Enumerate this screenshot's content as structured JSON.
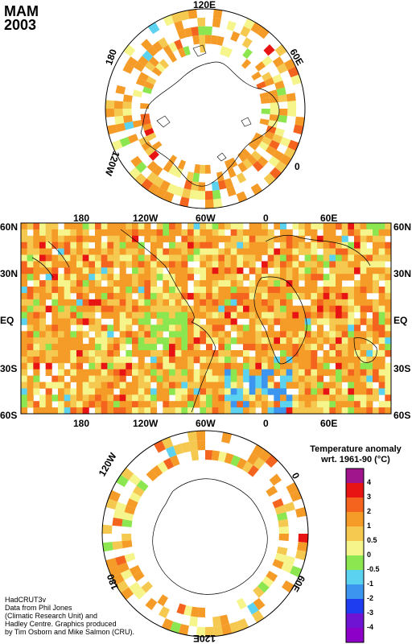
{
  "header": {
    "season": "MAM",
    "year": "2003"
  },
  "north_polar": {
    "labels": {
      "top": "120E",
      "right": "60E",
      "bottom_right": "0",
      "bottom_left": "120W",
      "left": "180"
    }
  },
  "equirect": {
    "top_lon_labels": [
      "180",
      "120W",
      "60W",
      "0",
      "60E"
    ],
    "bottom_lon_labels": [
      "180",
      "120W",
      "60W",
      "0",
      "60E"
    ],
    "lat_labels": [
      "60N",
      "30N",
      "EQ",
      "30S",
      "60S"
    ]
  },
  "south_polar": {
    "labels": {
      "left_top": "120W",
      "right_top": "0",
      "right_bottom": "60E",
      "bottom": "120E",
      "left_bottom": "180"
    }
  },
  "legend": {
    "title_line1": "Temperature anomaly",
    "title_line2": "wrt. 1961-90  (°C)",
    "ticks": [
      "4",
      "3",
      "2",
      "1",
      "0.5",
      "0",
      "-0.5",
      "-1",
      "-2",
      "-3",
      "-4"
    ],
    "colors": [
      "#a0148c",
      "#e81414",
      "#f5641e",
      "#f59b28",
      "#f5c850",
      "#f5f58c",
      "#8ce650",
      "#5ad2f0",
      "#3c96f0",
      "#1e3cf0",
      "#6e14d2",
      "#8c00c8"
    ]
  },
  "credits": [
    "HadCRUT3v",
    "Data from Phil Jones",
    "(Climatic Research Unit) and",
    "Hadley Centre.  Graphics produced",
    "by Tim Osborn and Mike Salmon (CRU)."
  ]
}
